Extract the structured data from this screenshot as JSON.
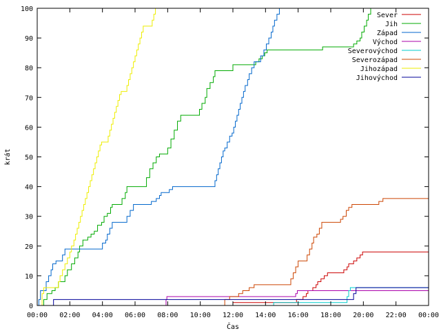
{
  "chart_data": {
    "type": "line",
    "step": true,
    "title": "",
    "xlabel": "Čas",
    "ylabel": "krát",
    "x_unit": "hours",
    "xlim": [
      0,
      24
    ],
    "ylim": [
      0,
      100
    ],
    "x_ticks": [
      {
        "value": 0,
        "label": "00:00"
      },
      {
        "value": 2,
        "label": "02:00"
      },
      {
        "value": 4,
        "label": "04:00"
      },
      {
        "value": 6,
        "label": "06:00"
      },
      {
        "value": 8,
        "label": "08:00"
      },
      {
        "value": 10,
        "label": "10:00"
      },
      {
        "value": 12,
        "label": "12:00"
      },
      {
        "value": 14,
        "label": "14:00"
      },
      {
        "value": 16,
        "label": "16:00"
      },
      {
        "value": 18,
        "label": "18:00"
      },
      {
        "value": 20,
        "label": "20:00"
      },
      {
        "value": 22,
        "label": "22:00"
      },
      {
        "value": 24,
        "label": "00:00"
      }
    ],
    "y_ticks": [
      0,
      10,
      20,
      30,
      40,
      50,
      60,
      70,
      80,
      90,
      100
    ],
    "grid": false,
    "legend_position": "top-right",
    "series": [
      {
        "name": "Sever",
        "color": "#cc0000",
        "points": [
          [
            0,
            0
          ],
          [
            11.9,
            0
          ],
          [
            12.0,
            1
          ],
          [
            15.8,
            1
          ],
          [
            15.9,
            2
          ],
          [
            16.3,
            3
          ],
          [
            16.5,
            4
          ],
          [
            16.6,
            5
          ],
          [
            16.9,
            6
          ],
          [
            17.1,
            7
          ],
          [
            17.2,
            8
          ],
          [
            17.4,
            9
          ],
          [
            17.6,
            10
          ],
          [
            17.8,
            11
          ],
          [
            18.7,
            11
          ],
          [
            18.8,
            12
          ],
          [
            19.0,
            13
          ],
          [
            19.1,
            14
          ],
          [
            19.4,
            15
          ],
          [
            19.6,
            16
          ],
          [
            19.8,
            17
          ],
          [
            19.95,
            18
          ],
          [
            24,
            18
          ]
        ]
      },
      {
        "name": "Jih",
        "color": "#00aa00",
        "points": [
          [
            0,
            0
          ],
          [
            0.3,
            0
          ],
          [
            0.4,
            2
          ],
          [
            0.6,
            4
          ],
          [
            0.9,
            5
          ],
          [
            1.1,
            6
          ],
          [
            1.3,
            8
          ],
          [
            1.7,
            10
          ],
          [
            1.85,
            12
          ],
          [
            2.1,
            14
          ],
          [
            2.3,
            16
          ],
          [
            2.5,
            18
          ],
          [
            2.6,
            20
          ],
          [
            2.8,
            22
          ],
          [
            3.1,
            23
          ],
          [
            3.3,
            24
          ],
          [
            3.5,
            25
          ],
          [
            3.7,
            27
          ],
          [
            3.95,
            28
          ],
          [
            4.1,
            30
          ],
          [
            4.3,
            31
          ],
          [
            4.5,
            33
          ],
          [
            4.6,
            34
          ],
          [
            5.1,
            34
          ],
          [
            5.2,
            36
          ],
          [
            5.4,
            38
          ],
          [
            5.5,
            40
          ],
          [
            6.6,
            40
          ],
          [
            6.7,
            43
          ],
          [
            6.9,
            46
          ],
          [
            7.1,
            48
          ],
          [
            7.3,
            50
          ],
          [
            7.5,
            51
          ],
          [
            7.9,
            51
          ],
          [
            8.0,
            53
          ],
          [
            8.2,
            56
          ],
          [
            8.4,
            59
          ],
          [
            8.6,
            62
          ],
          [
            8.8,
            64
          ],
          [
            9.8,
            64
          ],
          [
            9.95,
            66
          ],
          [
            10.1,
            68
          ],
          [
            10.3,
            70
          ],
          [
            10.4,
            73
          ],
          [
            10.6,
            75
          ],
          [
            10.8,
            77
          ],
          [
            10.9,
            79
          ],
          [
            11.9,
            79
          ],
          [
            12.0,
            81
          ],
          [
            13.3,
            81
          ],
          [
            13.4,
            82
          ],
          [
            13.6,
            83
          ],
          [
            13.8,
            84
          ],
          [
            13.95,
            85
          ],
          [
            14.1,
            86
          ],
          [
            17.4,
            86
          ],
          [
            17.5,
            87
          ],
          [
            19.3,
            87
          ],
          [
            19.4,
            88
          ],
          [
            19.6,
            89
          ],
          [
            19.8,
            90
          ],
          [
            19.9,
            92
          ],
          [
            20.05,
            94
          ],
          [
            20.2,
            96
          ],
          [
            20.3,
            98
          ],
          [
            20.45,
            100
          ]
        ]
      },
      {
        "name": "Západ",
        "color": "#0066cc",
        "points": [
          [
            0,
            0
          ],
          [
            0.1,
            2
          ],
          [
            0.2,
            5
          ],
          [
            0.55,
            8
          ],
          [
            0.7,
            10
          ],
          [
            0.85,
            12
          ],
          [
            0.95,
            14
          ],
          [
            1.15,
            15
          ],
          [
            1.45,
            15
          ],
          [
            1.55,
            17
          ],
          [
            1.7,
            19
          ],
          [
            3.9,
            19
          ],
          [
            4.0,
            21
          ],
          [
            4.2,
            22
          ],
          [
            4.3,
            24
          ],
          [
            4.45,
            26
          ],
          [
            4.6,
            28
          ],
          [
            5.4,
            28
          ],
          [
            5.5,
            30
          ],
          [
            5.7,
            32
          ],
          [
            5.9,
            34
          ],
          [
            6.85,
            34
          ],
          [
            7.0,
            35
          ],
          [
            7.3,
            36
          ],
          [
            7.5,
            37
          ],
          [
            7.6,
            38
          ],
          [
            7.95,
            38
          ],
          [
            8.1,
            39
          ],
          [
            8.3,
            40
          ],
          [
            10.8,
            40
          ],
          [
            10.9,
            42
          ],
          [
            11.0,
            44
          ],
          [
            11.1,
            46
          ],
          [
            11.2,
            48
          ],
          [
            11.3,
            50
          ],
          [
            11.4,
            52
          ],
          [
            11.5,
            53
          ],
          [
            11.65,
            55
          ],
          [
            11.8,
            57
          ],
          [
            11.95,
            58
          ],
          [
            12.05,
            60
          ],
          [
            12.15,
            62
          ],
          [
            12.25,
            64
          ],
          [
            12.35,
            66
          ],
          [
            12.45,
            68
          ],
          [
            12.55,
            70
          ],
          [
            12.65,
            72
          ],
          [
            12.75,
            74
          ],
          [
            12.9,
            76
          ],
          [
            13.0,
            78
          ],
          [
            13.15,
            80
          ],
          [
            13.3,
            82
          ],
          [
            13.55,
            82
          ],
          [
            13.7,
            84
          ],
          [
            13.9,
            86
          ],
          [
            14.05,
            88
          ],
          [
            14.2,
            90
          ],
          [
            14.35,
            92
          ],
          [
            14.45,
            94
          ],
          [
            14.55,
            96
          ],
          [
            14.7,
            98
          ],
          [
            14.85,
            100
          ]
        ]
      },
      {
        "name": "Východ",
        "color": "#aa00aa",
        "points": [
          [
            0,
            0
          ],
          [
            7.85,
            0
          ],
          [
            7.9,
            2
          ],
          [
            7.95,
            3
          ],
          [
            15.8,
            3
          ],
          [
            15.85,
            4
          ],
          [
            15.95,
            5
          ],
          [
            24,
            5
          ]
        ]
      },
      {
        "name": "Severovýchod",
        "color": "#00cccc",
        "points": [
          [
            0,
            0
          ],
          [
            14.4,
            0
          ],
          [
            14.5,
            1
          ],
          [
            18.9,
            1
          ],
          [
            19.0,
            3
          ],
          [
            19.1,
            5
          ],
          [
            19.2,
            6
          ],
          [
            24,
            6
          ]
        ]
      },
      {
        "name": "Severozápad",
        "color": "#cc4400",
        "points": [
          [
            0,
            0
          ],
          [
            11.35,
            0
          ],
          [
            11.5,
            2
          ],
          [
            11.8,
            3
          ],
          [
            12.35,
            4
          ],
          [
            12.6,
            5
          ],
          [
            13.0,
            6
          ],
          [
            13.3,
            7
          ],
          [
            15.45,
            7
          ],
          [
            15.55,
            9
          ],
          [
            15.7,
            11
          ],
          [
            15.85,
            13
          ],
          [
            16.0,
            15
          ],
          [
            16.4,
            15
          ],
          [
            16.55,
            17
          ],
          [
            16.7,
            19
          ],
          [
            16.85,
            21
          ],
          [
            16.95,
            23
          ],
          [
            17.15,
            24
          ],
          [
            17.3,
            26
          ],
          [
            17.45,
            28
          ],
          [
            18.45,
            28
          ],
          [
            18.6,
            29
          ],
          [
            18.75,
            30
          ],
          [
            18.95,
            32
          ],
          [
            19.1,
            33
          ],
          [
            19.3,
            34
          ],
          [
            20.8,
            34
          ],
          [
            20.95,
            35
          ],
          [
            21.2,
            36
          ],
          [
            24,
            36
          ]
        ]
      },
      {
        "name": "Jihozápad",
        "color": "#eeee00",
        "points": [
          [
            0,
            0
          ],
          [
            0.2,
            0
          ],
          [
            0.3,
            4
          ],
          [
            0.4,
            6
          ],
          [
            1.15,
            6
          ],
          [
            1.3,
            8
          ],
          [
            1.4,
            10
          ],
          [
            1.55,
            12
          ],
          [
            1.7,
            14
          ],
          [
            1.85,
            16
          ],
          [
            2.0,
            18
          ],
          [
            2.1,
            20
          ],
          [
            2.25,
            22
          ],
          [
            2.35,
            24
          ],
          [
            2.45,
            26
          ],
          [
            2.55,
            28
          ],
          [
            2.65,
            30
          ],
          [
            2.75,
            32
          ],
          [
            2.85,
            34
          ],
          [
            2.95,
            36
          ],
          [
            3.05,
            38
          ],
          [
            3.15,
            40
          ],
          [
            3.25,
            42
          ],
          [
            3.35,
            44
          ],
          [
            3.45,
            46
          ],
          [
            3.55,
            48
          ],
          [
            3.65,
            50
          ],
          [
            3.75,
            52
          ],
          [
            3.85,
            54
          ],
          [
            3.95,
            55
          ],
          [
            4.25,
            55
          ],
          [
            4.35,
            57
          ],
          [
            4.45,
            59
          ],
          [
            4.55,
            61
          ],
          [
            4.65,
            63
          ],
          [
            4.75,
            65
          ],
          [
            4.85,
            67
          ],
          [
            4.95,
            69
          ],
          [
            5.05,
            71
          ],
          [
            5.15,
            72
          ],
          [
            5.4,
            72
          ],
          [
            5.5,
            74
          ],
          [
            5.6,
            76
          ],
          [
            5.7,
            78
          ],
          [
            5.8,
            80
          ],
          [
            5.9,
            82
          ],
          [
            6.0,
            84
          ],
          [
            6.1,
            86
          ],
          [
            6.2,
            88
          ],
          [
            6.3,
            90
          ],
          [
            6.4,
            92
          ],
          [
            6.5,
            94
          ],
          [
            6.95,
            94
          ],
          [
            7.05,
            96
          ],
          [
            7.15,
            98
          ],
          [
            7.25,
            100
          ]
        ]
      },
      {
        "name": "Jihovýchod",
        "color": "#000099",
        "points": [
          [
            0,
            0
          ],
          [
            0.95,
            0
          ],
          [
            1.0,
            2
          ],
          [
            19.35,
            2
          ],
          [
            19.4,
            4
          ],
          [
            19.55,
            6
          ],
          [
            24,
            6
          ]
        ]
      }
    ]
  }
}
